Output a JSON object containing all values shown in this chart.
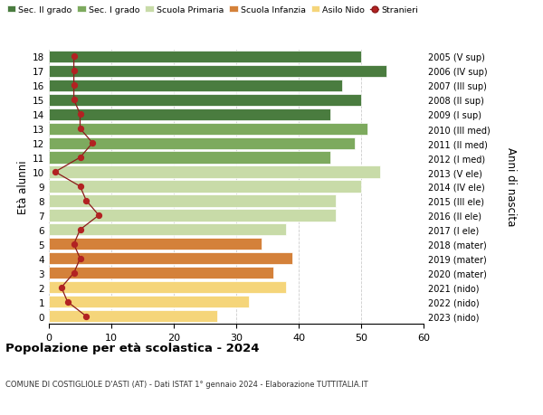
{
  "ages": [
    18,
    17,
    16,
    15,
    14,
    13,
    12,
    11,
    10,
    9,
    8,
    7,
    6,
    5,
    4,
    3,
    2,
    1,
    0
  ],
  "years": [
    "2005 (V sup)",
    "2006 (IV sup)",
    "2007 (III sup)",
    "2008 (II sup)",
    "2009 (I sup)",
    "2010 (III med)",
    "2011 (II med)",
    "2012 (I med)",
    "2013 (V ele)",
    "2014 (IV ele)",
    "2015 (III ele)",
    "2016 (II ele)",
    "2017 (I ele)",
    "2018 (mater)",
    "2019 (mater)",
    "2020 (mater)",
    "2021 (nido)",
    "2022 (nido)",
    "2023 (nido)"
  ],
  "bar_values": [
    50,
    54,
    47,
    50,
    45,
    51,
    49,
    45,
    53,
    50,
    46,
    46,
    38,
    34,
    39,
    36,
    38,
    32,
    27
  ],
  "bar_colors": [
    "#4a7c3f",
    "#4a7c3f",
    "#4a7c3f",
    "#4a7c3f",
    "#4a7c3f",
    "#7daa5e",
    "#7daa5e",
    "#7daa5e",
    "#c8dba8",
    "#c8dba8",
    "#c8dba8",
    "#c8dba8",
    "#c8dba8",
    "#d4813a",
    "#d4813a",
    "#d4813a",
    "#f5d57a",
    "#f5d57a",
    "#f5d57a"
  ],
  "stranieri": [
    4,
    4,
    4,
    4,
    5,
    5,
    7,
    5,
    1,
    5,
    6,
    8,
    5,
    4,
    5,
    4,
    2,
    3,
    6
  ],
  "legend_labels": [
    "Sec. II grado",
    "Sec. I grado",
    "Scuola Primaria",
    "Scuola Infanzia",
    "Asilo Nido",
    "Stranieri"
  ],
  "legend_colors": [
    "#4a7c3f",
    "#7daa5e",
    "#c8dba8",
    "#d4813a",
    "#f5d57a",
    "#b22222"
  ],
  "ylabel_left": "Età alunni",
  "ylabel_right": "Anni di nascita",
  "title": "Popolazione per età scolastica - 2024",
  "subtitle": "COMUNE DI COSTIGLIOLE D'ASTI (AT) - Dati ISTAT 1° gennaio 2024 - Elaborazione TUTTITALIA.IT",
  "xlim": [
    0,
    60
  ],
  "xticks": [
    0,
    10,
    20,
    30,
    40,
    50,
    60
  ],
  "grid_color": "#cccccc",
  "stranieri_line_color": "#8b1a1a",
  "stranieri_dot_color": "#b22222"
}
